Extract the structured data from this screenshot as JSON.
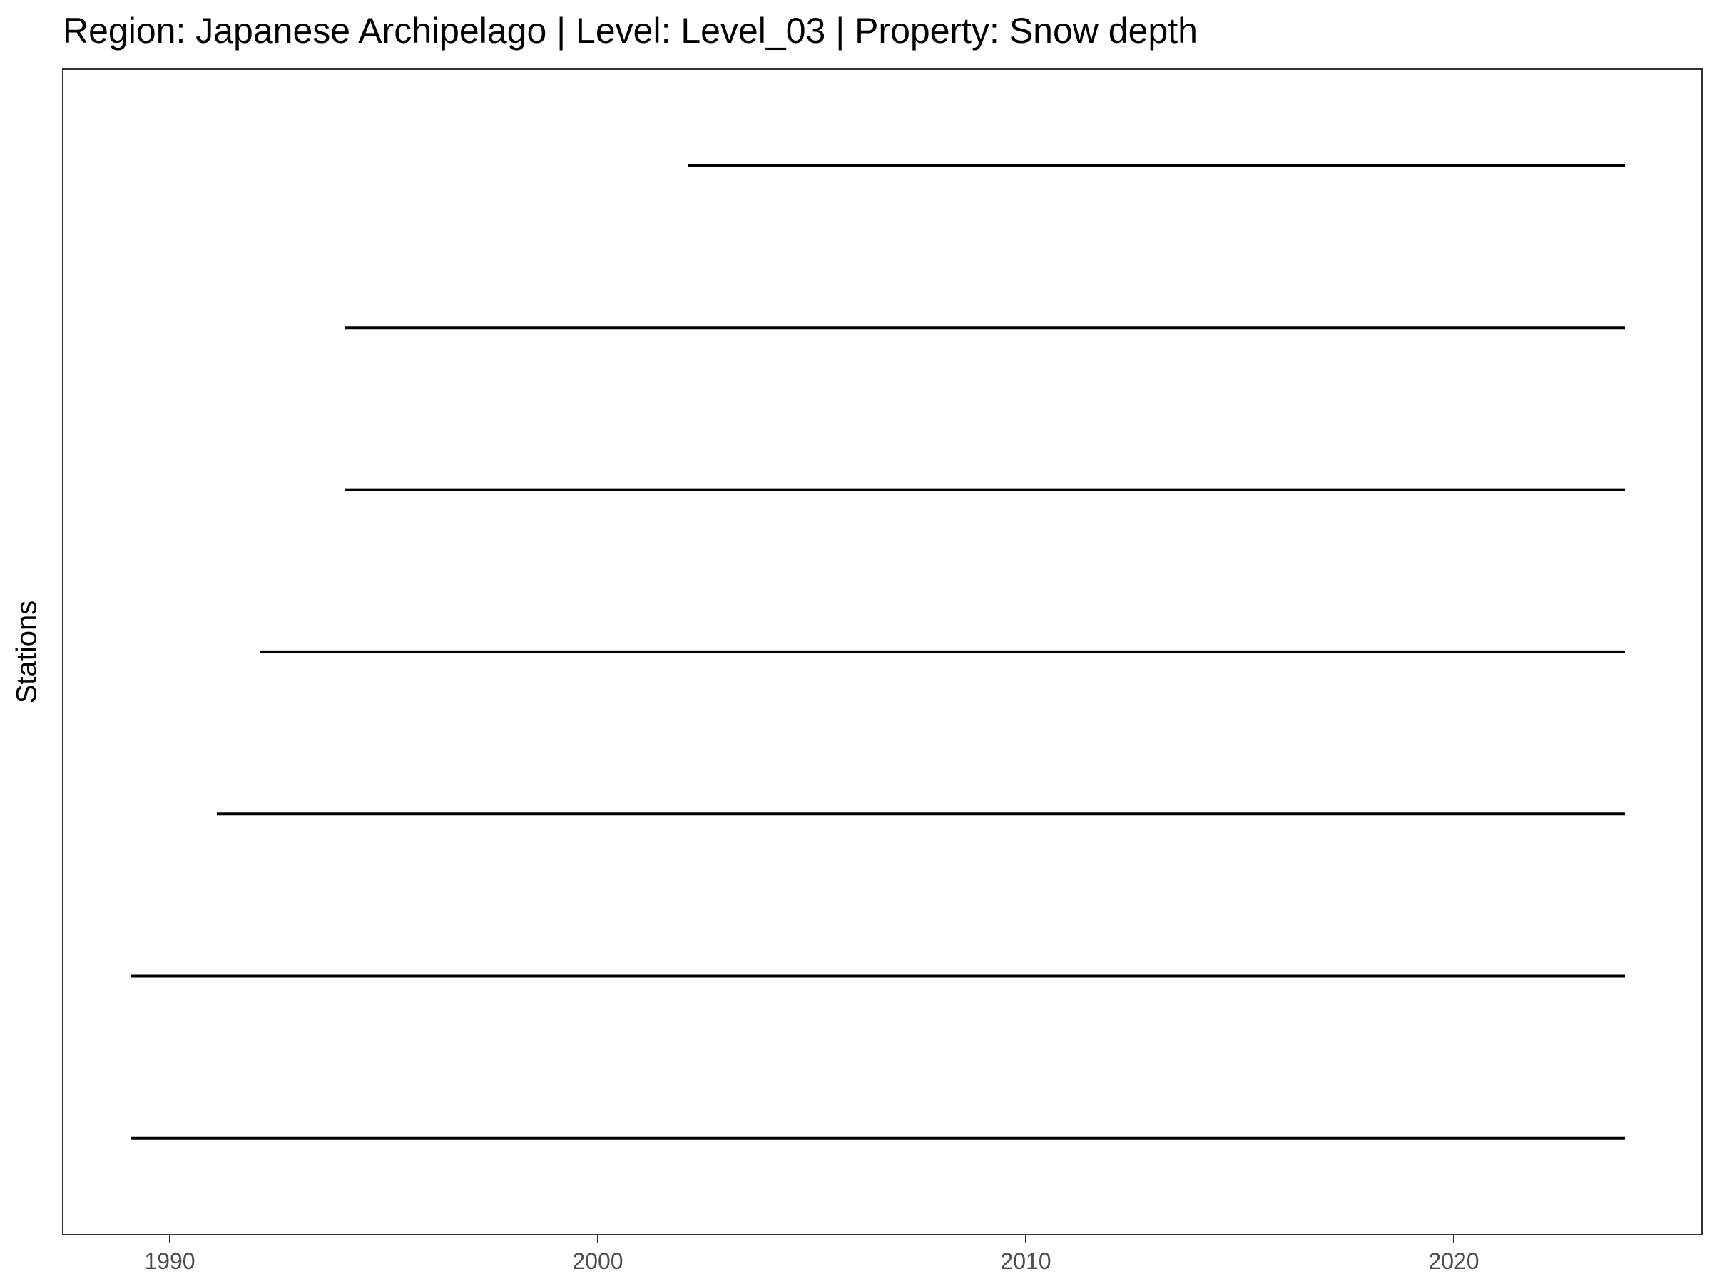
{
  "chart_data": {
    "type": "segment",
    "title": "Region: Japanese Archipelago | Level: Level_03 | Property: Snow depth",
    "xlabel": "",
    "ylabel": "Stations",
    "xlim": [
      1987.5,
      2025.8
    ],
    "x_ticks": [
      1990,
      2000,
      2010,
      2020
    ],
    "x_tick_labels": [
      "1990",
      "2000",
      "2010",
      "2020"
    ],
    "grid": false,
    "legend": "none",
    "line_color": "#000000",
    "segments": [
      {
        "start": 2002.1,
        "end": 2024.0
      },
      {
        "start": 1994.1,
        "end": 2024.0
      },
      {
        "start": 1994.1,
        "end": 2024.0
      },
      {
        "start": 1992.1,
        "end": 2024.0
      },
      {
        "start": 1991.1,
        "end": 2024.0
      },
      {
        "start": 1989.1,
        "end": 2024.0
      },
      {
        "start": 1989.1,
        "end": 2024.0
      }
    ]
  }
}
